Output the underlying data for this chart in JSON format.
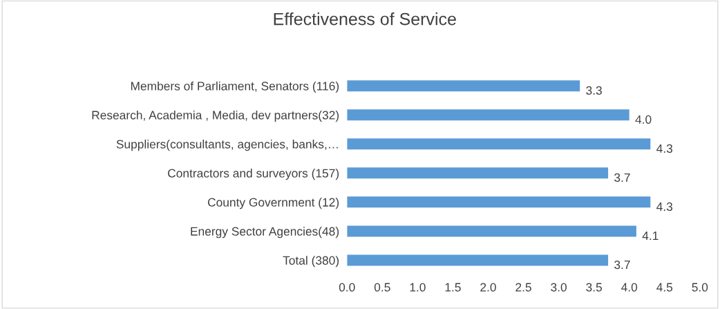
{
  "chart_data": {
    "type": "bar",
    "orientation": "horizontal",
    "title": "Effectiveness of Service",
    "categories": [
      "Members of Parliament, Senators (116)",
      "Research, Academia , Media, dev partners(32)",
      "Suppliers(consultants, agencies, banks,…",
      "Contractors and surveyors (157)",
      "County Government (12)",
      "Energy Sector Agencies(48)",
      "Total (380)"
    ],
    "values": [
      3.3,
      4.0,
      4.3,
      3.7,
      4.3,
      4.1,
      3.7
    ],
    "color": "#5b9bd5",
    "xlim": [
      0.0,
      5.0
    ],
    "xticks": [
      {
        "value": 0,
        "label": "0.0"
      },
      0.5,
      {
        "value": 1,
        "label": "1.0"
      },
      1.5,
      {
        "value": 2,
        "label": "2.0"
      },
      2.5,
      {
        "value": 3,
        "label": "3.0"
      },
      3.5,
      {
        "value": 4,
        "label": "4.0"
      },
      4.5,
      {
        "value": 5,
        "label": "5.0"
      }
    ],
    "value_labels": [
      "3.3",
      "4.0",
      "4.3",
      "3.7",
      "4.3",
      "4.1",
      "3.7"
    ],
    "grid": false,
    "legend": false
  }
}
